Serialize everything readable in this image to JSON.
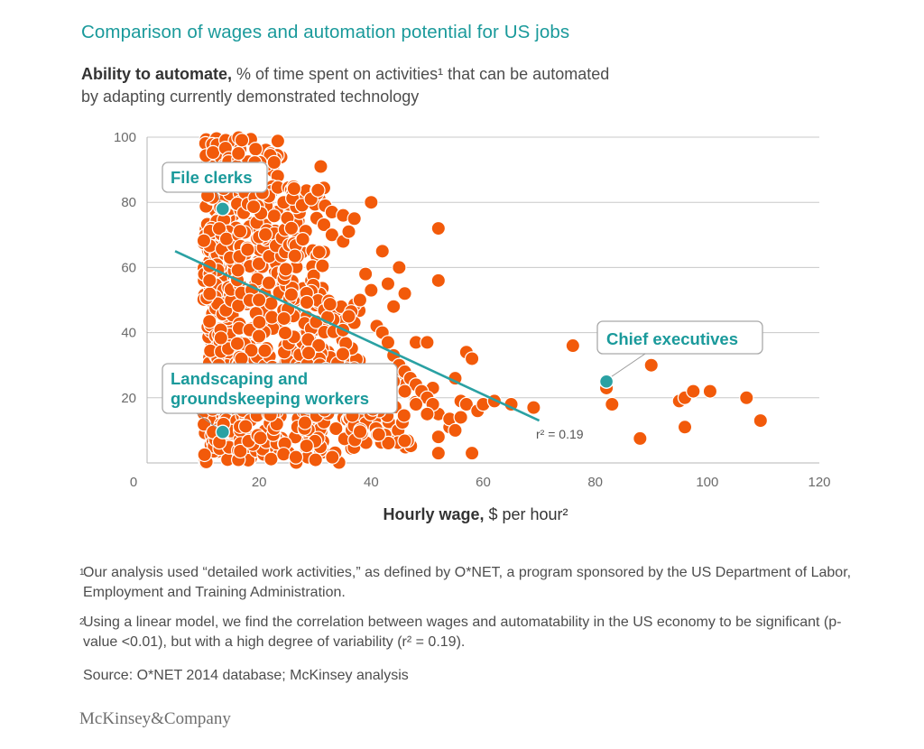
{
  "title": "Comparison of wages and automation potential for US jobs",
  "subtitle": {
    "bold": "Ability to automate,",
    "rest": " % of time spent on activities¹ that can be automated",
    "line2": "by adapting currently demonstrated technology"
  },
  "xlabel": {
    "bold": "Hourly wage,",
    "rest": " $ per hour²"
  },
  "footnotes": [
    {
      "mark": "1",
      "text": "Our analysis used “detailed work activities,” as defined by O*NET, a program sponsored by the US Department of Labor, Employment and Training Administration."
    },
    {
      "mark": "2",
      "text": "Using a linear model, we find the correlation between wages and automatability in the US economy to be significant (p-value <0.01), but with a high degree of variability (r² = 0.19)."
    }
  ],
  "source": "Source: O*NET 2014 database; McKinsey analysis",
  "logo": "McKinsey&Company",
  "colors": {
    "accent": "#1a9a9b",
    "dot": "#f25a0a",
    "highlight": "#2aa1a3",
    "grid": "#c8c8c8"
  },
  "chart_data": {
    "type": "scatter",
    "xlim": [
      0,
      120
    ],
    "ylim": [
      0,
      100
    ],
    "xticks": [
      0,
      20,
      40,
      60,
      80,
      100,
      120
    ],
    "yticks": [
      20,
      40,
      60,
      80,
      100
    ],
    "grid": true,
    "trendline": {
      "x": [
        5,
        70
      ],
      "y": [
        65,
        13
      ],
      "label": "r² = 0.19"
    },
    "highlighted": [
      {
        "label": "File clerks",
        "x": 13.5,
        "y": 78
      },
      {
        "label": "Chief executives",
        "x": 82,
        "y": 25
      },
      {
        "label": "Landscaping and groundskeeping workers",
        "line1": "Landscaping and",
        "line2": "groundskeeping workers",
        "x": 13.5,
        "y": 9.5
      }
    ],
    "points": [
      [
        76,
        36
      ],
      [
        82,
        23
      ],
      [
        83,
        18
      ],
      [
        88,
        7.5
      ],
      [
        90,
        30
      ],
      [
        95,
        19
      ],
      [
        96,
        20
      ],
      [
        96,
        11
      ],
      [
        97.5,
        22
      ],
      [
        100.5,
        22
      ],
      [
        107,
        20
      ],
      [
        109.5,
        13
      ],
      [
        45,
        60
      ],
      [
        46,
        52
      ],
      [
        48,
        37
      ],
      [
        50,
        37
      ],
      [
        51,
        23
      ],
      [
        52,
        3
      ],
      [
        52,
        8
      ],
      [
        52,
        15
      ],
      [
        54,
        11
      ],
      [
        54,
        13.5
      ],
      [
        55,
        10
      ],
      [
        55,
        26
      ],
      [
        56,
        14
      ],
      [
        56,
        19
      ],
      [
        57,
        34
      ],
      [
        57,
        18
      ],
      [
        58,
        3
      ],
      [
        58,
        32
      ],
      [
        59,
        16
      ],
      [
        60,
        18
      ],
      [
        62,
        19
      ],
      [
        65,
        18
      ],
      [
        69,
        17
      ],
      [
        40,
        80
      ],
      [
        42,
        65
      ],
      [
        43,
        55
      ],
      [
        44,
        48
      ],
      [
        33,
        77
      ],
      [
        35,
        76
      ],
      [
        37,
        75
      ],
      [
        33,
        70
      ],
      [
        35,
        68
      ],
      [
        36,
        45
      ],
      [
        38,
        50
      ],
      [
        39,
        58
      ],
      [
        40,
        53
      ],
      [
        41,
        42
      ],
      [
        42,
        40
      ],
      [
        43,
        37
      ],
      [
        44,
        33
      ],
      [
        45,
        30
      ],
      [
        46,
        28
      ],
      [
        47,
        26
      ],
      [
        48,
        24
      ],
      [
        49,
        22
      ],
      [
        50,
        20
      ],
      [
        51,
        18
      ],
      [
        44,
        25
      ],
      [
        46,
        22
      ],
      [
        48,
        18
      ],
      [
        50,
        15
      ],
      [
        52,
        56
      ],
      [
        52,
        72
      ],
      [
        31,
        91
      ],
      [
        36,
        71
      ]
    ],
    "clusters": [
      {
        "x": [
          10,
          16
        ],
        "y": [
          0,
          100
        ],
        "count": 330,
        "seed": 11
      },
      {
        "x": [
          16,
          24
        ],
        "y": [
          0,
          100
        ],
        "count": 260,
        "seed": 23
      },
      {
        "x": [
          24,
          32
        ],
        "y": [
          0,
          85
        ],
        "count": 170,
        "seed": 37
      },
      {
        "x": [
          28,
          38
        ],
        "y": [
          0,
          50
        ],
        "count": 120,
        "seed": 41
      },
      {
        "x": [
          36,
          48
        ],
        "y": [
          4,
          30
        ],
        "count": 70,
        "seed": 53
      }
    ]
  }
}
